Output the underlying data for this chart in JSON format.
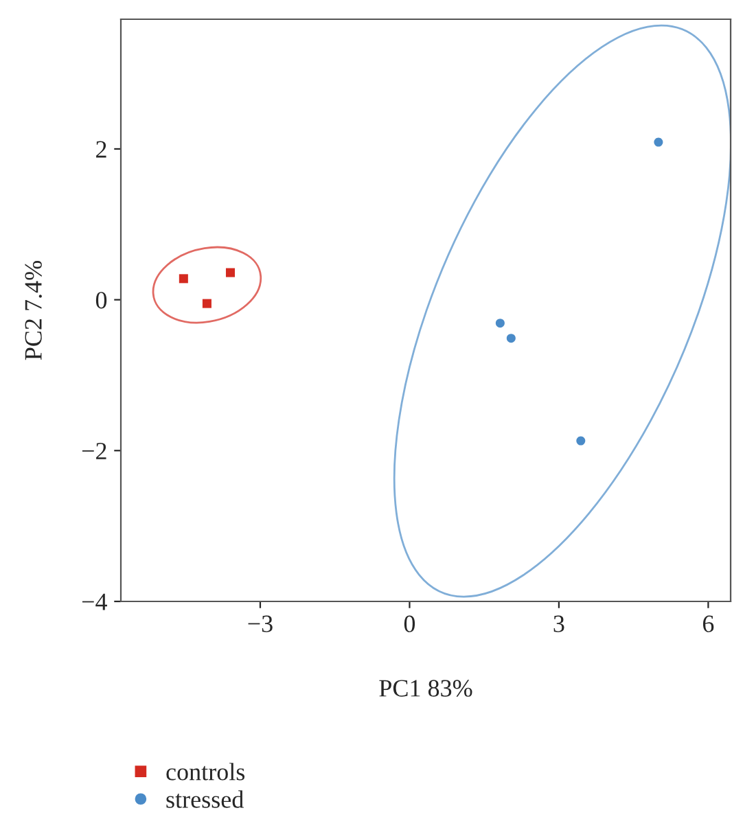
{
  "chart_data": {
    "type": "scatter",
    "xlabel": "PC1 83%",
    "ylabel": "PC2 7.4%",
    "xlim": [
      -5.8,
      6.45
    ],
    "ylim": [
      -4,
      3.72
    ],
    "xticks": [
      {
        "value": -3,
        "label": "−3"
      },
      0,
      3,
      6
    ],
    "yticks": [
      {
        "value": -4,
        "label": "−4"
      },
      {
        "value": -2,
        "label": "−2"
      },
      0,
      2
    ],
    "grid": false,
    "legend": "bottom left",
    "series": [
      {
        "name": "controls",
        "color": "#d42a20",
        "marker": "square",
        "x": [
          -4.54,
          -3.6,
          -4.07
        ],
        "values": [
          0.28,
          0.36,
          -0.05
        ]
      },
      {
        "name": "stressed",
        "color": "#4a8bc8",
        "marker": "circle",
        "x": [
          5.0,
          1.82,
          2.04,
          3.44
        ],
        "values": [
          2.09,
          -0.31,
          -0.51,
          -1.87
        ]
      }
    ]
  }
}
